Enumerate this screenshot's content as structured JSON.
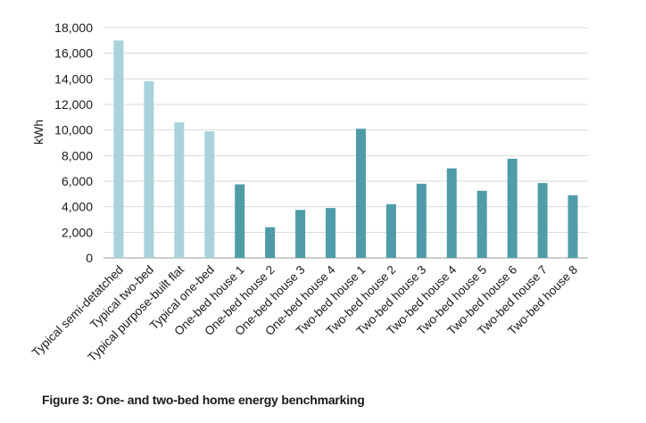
{
  "figure": {
    "caption": "Figure 3: One- and two-bed home energy benchmarking"
  },
  "chart_data": {
    "type": "bar",
    "ylabel": "kWh",
    "xlabel": "",
    "ylim": [
      0,
      18000
    ],
    "yticks": [
      "0",
      "2,000",
      "4,000",
      "6,000",
      "8,000",
      "10,000",
      "12,000",
      "14,000",
      "16,000",
      "18,000"
    ],
    "grid": true,
    "categories": [
      "Typical semi-detatched",
      "Typical two-bed",
      "Typical purpose-built flat",
      "Typical one-bed",
      "One-bed house 1",
      "One-bed house 2",
      "One-bed house 3",
      "One-bed house 4",
      "Two-bed house 1",
      "Two-bed house 2",
      "Two-bed house 3",
      "Two-bed house 4",
      "Two-bed house 5",
      "Two-bed house 6",
      "Two-bed house 7",
      "Two-bed house 8"
    ],
    "values": [
      17000,
      13800,
      10600,
      9900,
      5750,
      2400,
      3750,
      3900,
      10100,
      4200,
      5800,
      7000,
      5250,
      7750,
      5850,
      4900
    ],
    "colors": {
      "typical": "#a8d3da",
      "measured": "#4f9ca8",
      "grid": "#d9d9d9",
      "axis": "#9a9a9a"
    },
    "bar_groups": [
      "typical",
      "typical",
      "typical",
      "typical",
      "measured",
      "measured",
      "measured",
      "measured",
      "measured",
      "measured",
      "measured",
      "measured",
      "measured",
      "measured",
      "measured",
      "measured"
    ]
  }
}
